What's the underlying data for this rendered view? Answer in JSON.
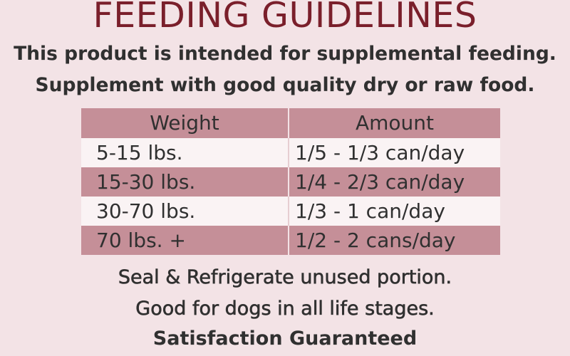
{
  "title": "FEEDING GUIDELINES",
  "intro": [
    "This product is intended for supplemental feeding.",
    "Supplement with good quality dry or raw food."
  ],
  "table": {
    "headers": [
      "Weight",
      "Amount"
    ],
    "rows": [
      [
        "5-15 lbs.",
        "1/5 - 1/3 can/day"
      ],
      [
        "15-30 lbs.",
        "1/4 - 2/3 can/day"
      ],
      [
        "30-70 lbs.",
        "1/3 - 1 can/day"
      ],
      [
        "70 lbs. +",
        "1/2 - 2 cans/day"
      ]
    ]
  },
  "footer": [
    "Seal & Refrigerate unused portion.",
    "Good for dogs in all life stages.",
    "Satisfaction Guaranteed"
  ],
  "colors": {
    "background": "#f3e3e6",
    "title": "#7a1f2b",
    "band": "#c58f98",
    "light_row": "#faf3f4",
    "text": "#303030"
  }
}
